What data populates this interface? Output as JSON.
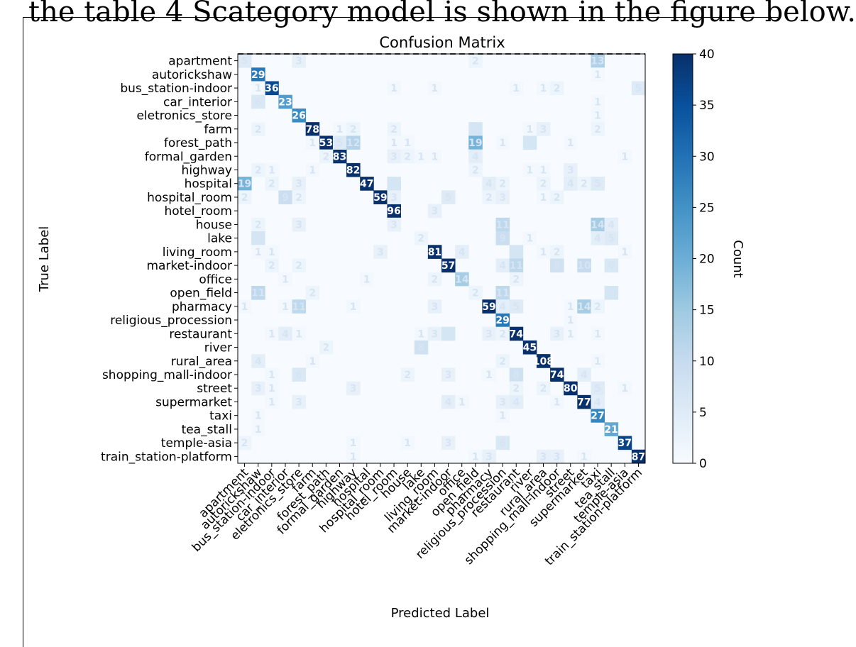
{
  "caption": "the table 4 Scategory model is shown in the figure below.",
  "chart_data": {
    "type": "heatmap",
    "title": "Confusion Matrix",
    "xlabel": "Predicted Label",
    "ylabel": "True Label",
    "colorbar_label": "Count",
    "colorbar_ticks": [
      0,
      5,
      10,
      15,
      20,
      25,
      30,
      35,
      40
    ],
    "vmin": 0,
    "vmax": 40,
    "colormap": "Blues",
    "labels": [
      "apartment",
      "autorickshaw",
      "bus_station-indoor",
      "car_interior",
      "eletronics_store",
      "farm",
      "forest_path",
      "formal_garden",
      "highway",
      "hospital",
      "hospital_room",
      "hotel_room",
      "house",
      "lake",
      "living_room",
      "market-indoor",
      "office",
      "open_field",
      "pharmacy",
      "religious_procession",
      "restaurant",
      "river",
      "rural_area",
      "shopping_mall-indoor",
      "street",
      "supermarket",
      "taxi",
      "tea_stall",
      "temple-asia",
      "train_station-platform"
    ],
    "diagonal": [
      5,
      29,
      36,
      23,
      26,
      78,
      53,
      83,
      82,
      47,
      59,
      96,
      0,
      2,
      81,
      57,
      14,
      2,
      59,
      29,
      74,
      45,
      108,
      74,
      80,
      77,
      27,
      21,
      37,
      87
    ],
    "off_diagonal": [
      {
        "row": 0,
        "col": 4,
        "value": 3
      },
      {
        "row": 0,
        "col": 17,
        "value": 2
      },
      {
        "row": 0,
        "col": 26,
        "value": 13
      },
      {
        "row": 1,
        "col": 26,
        "value": 1
      },
      {
        "row": 2,
        "col": 1,
        "value": 1
      },
      {
        "row": 2,
        "col": 11,
        "value": 1
      },
      {
        "row": 2,
        "col": 14,
        "value": 1
      },
      {
        "row": 2,
        "col": 20,
        "value": 1
      },
      {
        "row": 2,
        "col": 22,
        "value": 1
      },
      {
        "row": 2,
        "col": 23,
        "value": 2
      },
      {
        "row": 2,
        "col": 29,
        "value": 5
      },
      {
        "row": 3,
        "col": 1,
        "value": 6
      },
      {
        "row": 3,
        "col": 26,
        "value": 1
      },
      {
        "row": 4,
        "col": 26,
        "value": 1
      },
      {
        "row": 5,
        "col": 1,
        "value": 2
      },
      {
        "row": 5,
        "col": 7,
        "value": 1
      },
      {
        "row": 5,
        "col": 8,
        "value": 2
      },
      {
        "row": 5,
        "col": 11,
        "value": 2
      },
      {
        "row": 5,
        "col": 17,
        "value": 7
      },
      {
        "row": 5,
        "col": 21,
        "value": 1
      },
      {
        "row": 5,
        "col": 22,
        "value": 3
      },
      {
        "row": 5,
        "col": 26,
        "value": 2
      },
      {
        "row": 6,
        "col": 5,
        "value": 1
      },
      {
        "row": 6,
        "col": 7,
        "value": 5
      },
      {
        "row": 6,
        "col": 8,
        "value": 12
      },
      {
        "row": 6,
        "col": 11,
        "value": 1
      },
      {
        "row": 6,
        "col": 12,
        "value": 1
      },
      {
        "row": 6,
        "col": 17,
        "value": 19
      },
      {
        "row": 6,
        "col": 19,
        "value": 1
      },
      {
        "row": 6,
        "col": 21,
        "value": 7
      },
      {
        "row": 6,
        "col": 24,
        "value": 1
      },
      {
        "row": 7,
        "col": 6,
        "value": 2
      },
      {
        "row": 7,
        "col": 11,
        "value": 3
      },
      {
        "row": 7,
        "col": 12,
        "value": 2
      },
      {
        "row": 7,
        "col": 13,
        "value": 1
      },
      {
        "row": 7,
        "col": 14,
        "value": 1
      },
      {
        "row": 7,
        "col": 17,
        "value": 4
      },
      {
        "row": 7,
        "col": 28,
        "value": 1
      },
      {
        "row": 8,
        "col": 1,
        "value": 2
      },
      {
        "row": 8,
        "col": 2,
        "value": 1
      },
      {
        "row": 8,
        "col": 5,
        "value": 1
      },
      {
        "row": 8,
        "col": 17,
        "value": 2
      },
      {
        "row": 8,
        "col": 21,
        "value": 1
      },
      {
        "row": 8,
        "col": 22,
        "value": 1
      },
      {
        "row": 8,
        "col": 24,
        "value": 3
      },
      {
        "row": 9,
        "col": 0,
        "value": 19
      },
      {
        "row": 9,
        "col": 2,
        "value": 2
      },
      {
        "row": 9,
        "col": 4,
        "value": 3
      },
      {
        "row": 9,
        "col": 11,
        "value": 7
      },
      {
        "row": 9,
        "col": 18,
        "value": 4
      },
      {
        "row": 9,
        "col": 19,
        "value": 2
      },
      {
        "row": 9,
        "col": 22,
        "value": 2
      },
      {
        "row": 9,
        "col": 24,
        "value": 4
      },
      {
        "row": 9,
        "col": 25,
        "value": 2
      },
      {
        "row": 9,
        "col": 26,
        "value": 5
      },
      {
        "row": 10,
        "col": 0,
        "value": 2
      },
      {
        "row": 10,
        "col": 3,
        "value": 9
      },
      {
        "row": 10,
        "col": 4,
        "value": 2
      },
      {
        "row": 10,
        "col": 11,
        "value": 3
      },
      {
        "row": 10,
        "col": 15,
        "value": 5
      },
      {
        "row": 10,
        "col": 18,
        "value": 2
      },
      {
        "row": 10,
        "col": 19,
        "value": 3
      },
      {
        "row": 10,
        "col": 22,
        "value": 1
      },
      {
        "row": 10,
        "col": 23,
        "value": 2
      },
      {
        "row": 11,
        "col": 14,
        "value": 3
      },
      {
        "row": 12,
        "col": 1,
        "value": 2
      },
      {
        "row": 12,
        "col": 4,
        "value": 3
      },
      {
        "row": 12,
        "col": 11,
        "value": 3
      },
      {
        "row": 12,
        "col": 19,
        "value": 11
      },
      {
        "row": 12,
        "col": 26,
        "value": 14
      },
      {
        "row": 12,
        "col": 27,
        "value": 4
      },
      {
        "row": 13,
        "col": 1,
        "value": 7
      },
      {
        "row": 13,
        "col": 19,
        "value": 9
      },
      {
        "row": 13,
        "col": 21,
        "value": 1
      },
      {
        "row": 13,
        "col": 26,
        "value": 4
      },
      {
        "row": 13,
        "col": 27,
        "value": 5
      },
      {
        "row": 14,
        "col": 1,
        "value": 1
      },
      {
        "row": 14,
        "col": 2,
        "value": 1
      },
      {
        "row": 14,
        "col": 10,
        "value": 3
      },
      {
        "row": 14,
        "col": 16,
        "value": 4
      },
      {
        "row": 14,
        "col": 20,
        "value": 7
      },
      {
        "row": 14,
        "col": 22,
        "value": 1
      },
      {
        "row": 14,
        "col": 23,
        "value": 2
      },
      {
        "row": 14,
        "col": 28,
        "value": 1
      },
      {
        "row": 15,
        "col": 2,
        "value": 2
      },
      {
        "row": 15,
        "col": 4,
        "value": 2
      },
      {
        "row": 15,
        "col": 19,
        "value": 4
      },
      {
        "row": 15,
        "col": 20,
        "value": 11
      },
      {
        "row": 15,
        "col": 23,
        "value": 8
      },
      {
        "row": 15,
        "col": 25,
        "value": 10
      },
      {
        "row": 15,
        "col": 27,
        "value": 6
      },
      {
        "row": 16,
        "col": 3,
        "value": 1
      },
      {
        "row": 16,
        "col": 9,
        "value": 1
      },
      {
        "row": 16,
        "col": 14,
        "value": 2
      },
      {
        "row": 16,
        "col": 20,
        "value": 2
      },
      {
        "row": 17,
        "col": 1,
        "value": 11
      },
      {
        "row": 17,
        "col": 5,
        "value": 2
      },
      {
        "row": 17,
        "col": 19,
        "value": 11
      },
      {
        "row": 17,
        "col": 27,
        "value": 7
      },
      {
        "row": 18,
        "col": 0,
        "value": 1
      },
      {
        "row": 18,
        "col": 3,
        "value": 1
      },
      {
        "row": 18,
        "col": 4,
        "value": 11
      },
      {
        "row": 18,
        "col": 8,
        "value": 1
      },
      {
        "row": 18,
        "col": 14,
        "value": 3
      },
      {
        "row": 18,
        "col": 19,
        "value": 4
      },
      {
        "row": 18,
        "col": 20,
        "value": 5
      },
      {
        "row": 18,
        "col": 24,
        "value": 1
      },
      {
        "row": 18,
        "col": 25,
        "value": 14
      },
      {
        "row": 18,
        "col": 26,
        "value": 2
      },
      {
        "row": 19,
        "col": 24,
        "value": 1
      },
      {
        "row": 20,
        "col": 2,
        "value": 1
      },
      {
        "row": 20,
        "col": 3,
        "value": 4
      },
      {
        "row": 20,
        "col": 4,
        "value": 1
      },
      {
        "row": 20,
        "col": 13,
        "value": 1
      },
      {
        "row": 20,
        "col": 14,
        "value": 3
      },
      {
        "row": 20,
        "col": 15,
        "value": 7
      },
      {
        "row": 20,
        "col": 18,
        "value": 3
      },
      {
        "row": 20,
        "col": 19,
        "value": 2
      },
      {
        "row": 20,
        "col": 23,
        "value": 3
      },
      {
        "row": 20,
        "col": 24,
        "value": 1
      },
      {
        "row": 20,
        "col": 26,
        "value": 1
      },
      {
        "row": 21,
        "col": 6,
        "value": 2
      },
      {
        "row": 21,
        "col": 13,
        "value": 8
      },
      {
        "row": 22,
        "col": 1,
        "value": 4
      },
      {
        "row": 22,
        "col": 5,
        "value": 1
      },
      {
        "row": 22,
        "col": 19,
        "value": 2
      },
      {
        "row": 22,
        "col": 26,
        "value": 1
      },
      {
        "row": 23,
        "col": 2,
        "value": 1
      },
      {
        "row": 23,
        "col": 4,
        "value": 6
      },
      {
        "row": 23,
        "col": 12,
        "value": 2
      },
      {
        "row": 23,
        "col": 15,
        "value": 3
      },
      {
        "row": 23,
        "col": 18,
        "value": 1
      },
      {
        "row": 23,
        "col": 20,
        "value": 8
      },
      {
        "row": 23,
        "col": 25,
        "value": 4
      },
      {
        "row": 24,
        "col": 1,
        "value": 3
      },
      {
        "row": 24,
        "col": 2,
        "value": 1
      },
      {
        "row": 24,
        "col": 8,
        "value": 3
      },
      {
        "row": 24,
        "col": 20,
        "value": 2
      },
      {
        "row": 24,
        "col": 22,
        "value": 2
      },
      {
        "row": 24,
        "col": 26,
        "value": 5
      },
      {
        "row": 24,
        "col": 28,
        "value": 1
      },
      {
        "row": 25,
        "col": 2,
        "value": 1
      },
      {
        "row": 25,
        "col": 4,
        "value": 3
      },
      {
        "row": 25,
        "col": 15,
        "value": 4
      },
      {
        "row": 25,
        "col": 16,
        "value": 1
      },
      {
        "row": 25,
        "col": 19,
        "value": 3
      },
      {
        "row": 25,
        "col": 20,
        "value": 4
      },
      {
        "row": 25,
        "col": 23,
        "value": 1
      },
      {
        "row": 25,
        "col": 26,
        "value": 4
      },
      {
        "row": 26,
        "col": 1,
        "value": 1
      },
      {
        "row": 26,
        "col": 19,
        "value": 1
      },
      {
        "row": 27,
        "col": 1,
        "value": 1
      },
      {
        "row": 28,
        "col": 0,
        "value": 2
      },
      {
        "row": 28,
        "col": 8,
        "value": 1
      },
      {
        "row": 28,
        "col": 12,
        "value": 1
      },
      {
        "row": 28,
        "col": 15,
        "value": 3
      },
      {
        "row": 28,
        "col": 19,
        "value": 6
      },
      {
        "row": 29,
        "col": 8,
        "value": 1
      },
      {
        "row": 29,
        "col": 17,
        "value": 1
      },
      {
        "row": 29,
        "col": 18,
        "value": 3
      },
      {
        "row": 29,
        "col": 22,
        "value": 3
      },
      {
        "row": 29,
        "col": 23,
        "value": 3
      },
      {
        "row": 29,
        "col": 25,
        "value": 1
      }
    ]
  }
}
